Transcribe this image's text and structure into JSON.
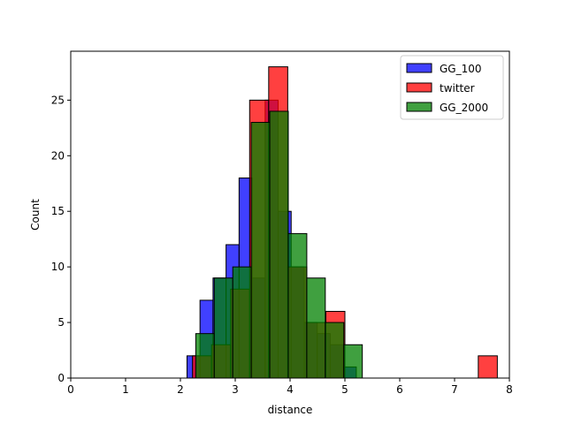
{
  "chart_data": {
    "type": "bar",
    "xlabel": "distance",
    "ylabel": "Count",
    "xlim": [
      0,
      8
    ],
    "ylim": [
      0,
      29.4
    ],
    "xticks": [
      "0",
      "1",
      "2",
      "3",
      "4",
      "5",
      "6",
      "7",
      "8"
    ],
    "yticks": [
      "0",
      "5",
      "10",
      "15",
      "20",
      "25"
    ],
    "legend_position": "top-right",
    "grid": false,
    "series": [
      {
        "name": "GG_100",
        "color": "#0000ff",
        "bin_start": 2.12,
        "bin_width": 0.2375,
        "values": [
          2,
          7,
          9,
          12,
          18,
          9,
          25,
          15,
          10,
          5,
          4,
          3,
          1
        ]
      },
      {
        "name": "twitter",
        "color": "#ff0000",
        "bin_start": 2.22,
        "bin_width": 0.3475,
        "values": [
          2,
          3,
          8,
          25,
          28,
          10,
          5,
          6,
          0,
          0,
          0,
          0,
          0,
          0,
          0,
          2
        ]
      },
      {
        "name": "GG_2000",
        "color": "#008000",
        "bin_start": 2.28,
        "bin_width": 0.3375,
        "values": [
          4,
          9,
          10,
          23,
          24,
          13,
          9,
          5,
          3
        ]
      }
    ]
  }
}
